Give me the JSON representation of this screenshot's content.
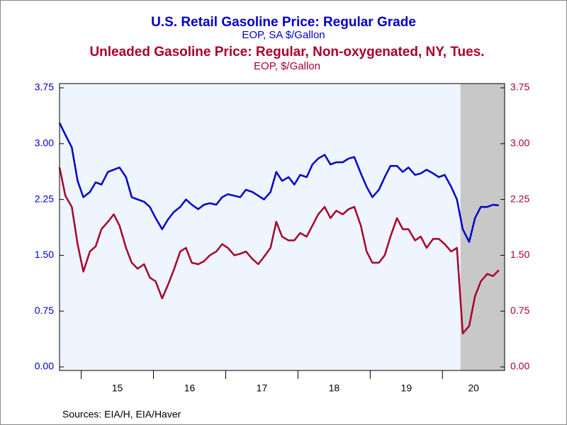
{
  "chart_data": {
    "type": "line",
    "series": [
      {
        "name": "U.S. Retail Gasoline Price: Regular Grade",
        "unit": "EOP, SA $/Gallon",
        "color": "#0000c8",
        "axis": "y",
        "values": [
          3.28,
          3.12,
          2.95,
          2.5,
          2.28,
          2.35,
          2.48,
          2.45,
          2.62,
          2.65,
          2.68,
          2.55,
          2.28,
          2.25,
          2.22,
          2.15,
          2.0,
          1.85,
          1.98,
          2.08,
          2.15,
          2.25,
          2.18,
          2.12,
          2.18,
          2.2,
          2.18,
          2.28,
          2.32,
          2.3,
          2.28,
          2.38,
          2.35,
          2.3,
          2.25,
          2.35,
          2.62,
          2.5,
          2.55,
          2.45,
          2.58,
          2.55,
          2.72,
          2.8,
          2.85,
          2.72,
          2.75,
          2.75,
          2.8,
          2.82,
          2.6,
          2.42,
          2.28,
          2.38,
          2.55,
          2.7,
          2.7,
          2.62,
          2.68,
          2.58,
          2.6,
          2.65,
          2.6,
          2.55,
          2.58,
          2.42,
          2.25,
          1.85,
          1.68,
          2.0,
          2.15,
          2.15,
          2.18,
          2.17
        ]
      },
      {
        "name": "Unleaded Gasoline Price: Regular, Non-oxygenated, NY, Tues.",
        "unit": "EOP, $/Gallon",
        "color": "#a8002a",
        "axis": "y2",
        "values": [
          2.68,
          2.3,
          2.15,
          1.65,
          1.28,
          1.55,
          1.62,
          1.85,
          1.95,
          2.05,
          1.9,
          1.6,
          1.4,
          1.32,
          1.38,
          1.2,
          1.15,
          0.92,
          1.1,
          1.3,
          1.55,
          1.6,
          1.4,
          1.38,
          1.42,
          1.5,
          1.55,
          1.65,
          1.6,
          1.5,
          1.52,
          1.55,
          1.45,
          1.38,
          1.48,
          1.6,
          1.95,
          1.75,
          1.7,
          1.7,
          1.8,
          1.75,
          1.9,
          2.05,
          2.15,
          2.0,
          2.1,
          2.05,
          2.12,
          2.15,
          1.9,
          1.55,
          1.4,
          1.4,
          1.5,
          1.75,
          2.0,
          1.85,
          1.85,
          1.7,
          1.75,
          1.6,
          1.72,
          1.72,
          1.65,
          1.55,
          1.6,
          0.45,
          0.55,
          0.95,
          1.15,
          1.25,
          1.22,
          1.3
        ]
      }
    ],
    "x": [
      14.7,
      14.78,
      14.87,
      14.95,
      15.03,
      15.12,
      15.2,
      15.28,
      15.37,
      15.45,
      15.53,
      15.62,
      15.7,
      15.78,
      15.87,
      15.95,
      16.03,
      16.12,
      16.2,
      16.28,
      16.37,
      16.45,
      16.53,
      16.62,
      16.7,
      16.78,
      16.87,
      16.95,
      17.03,
      17.12,
      17.2,
      17.28,
      17.37,
      17.45,
      17.53,
      17.62,
      17.7,
      17.78,
      17.87,
      17.95,
      18.03,
      18.12,
      18.2,
      18.28,
      18.37,
      18.45,
      18.53,
      18.62,
      18.7,
      18.78,
      18.87,
      18.95,
      19.03,
      19.12,
      19.2,
      19.28,
      19.37,
      19.45,
      19.53,
      19.62,
      19.7,
      19.78,
      19.87,
      19.95,
      20.03,
      20.12,
      20.2,
      20.28,
      20.37,
      20.45,
      20.53,
      20.62,
      20.7,
      20.78
    ],
    "xlim": [
      14.7,
      20.86
    ],
    "xticks": [
      {
        "value": 15,
        "label": "15"
      },
      {
        "value": 16,
        "label": "16"
      },
      {
        "value": 17,
        "label": "17"
      },
      {
        "value": 18,
        "label": "18"
      },
      {
        "value": 19,
        "label": "19"
      },
      {
        "value": 20,
        "label": "20"
      }
    ],
    "ylim": [
      0,
      3.75
    ],
    "yticks": [
      {
        "value": 0,
        "label": "0.00"
      },
      {
        "value": 0.75,
        "label": "0.75"
      },
      {
        "value": 1.5,
        "label": "1.50"
      },
      {
        "value": 2.25,
        "label": "2.25"
      },
      {
        "value": 3,
        "label": "3.00"
      },
      {
        "value": 3.75,
        "label": "3.75"
      }
    ],
    "y2lim": [
      0,
      3.75
    ],
    "y2ticks": [
      {
        "value": 0,
        "label": "0.00"
      },
      {
        "value": 0.75,
        "label": "0.75"
      },
      {
        "value": 1.5,
        "label": "1.50"
      },
      {
        "value": 2.25,
        "label": "2.25"
      },
      {
        "value": 3,
        "label": "3.00"
      },
      {
        "value": 3.75,
        "label": "3.75"
      }
    ],
    "shaded_regions": [
      [
        20.25,
        20.86
      ]
    ],
    "source": "Sources:  EIA/H, EIA/Haver"
  }
}
